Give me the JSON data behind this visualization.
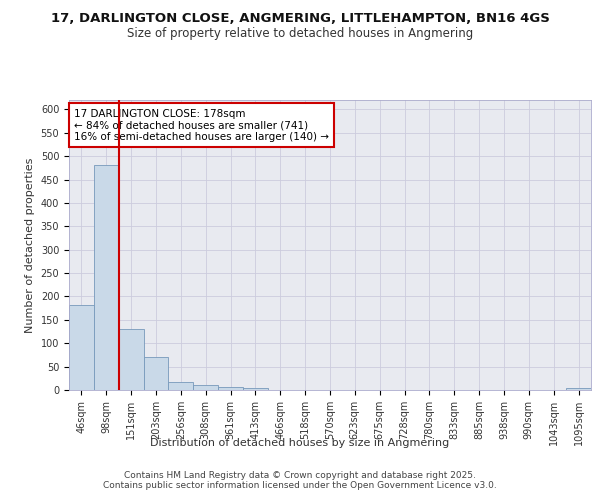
{
  "title_line1": "17, DARLINGTON CLOSE, ANGMERING, LITTLEHAMPTON, BN16 4GS",
  "title_line2": "Size of property relative to detached houses in Angmering",
  "xlabel": "Distribution of detached houses by size in Angmering",
  "ylabel": "Number of detached properties",
  "categories": [
    "46sqm",
    "98sqm",
    "151sqm",
    "203sqm",
    "256sqm",
    "308sqm",
    "361sqm",
    "413sqm",
    "466sqm",
    "518sqm",
    "570sqm",
    "623sqm",
    "675sqm",
    "728sqm",
    "780sqm",
    "833sqm",
    "885sqm",
    "938sqm",
    "990sqm",
    "1043sqm",
    "1095sqm"
  ],
  "values": [
    181,
    480,
    130,
    70,
    18,
    10,
    6,
    5,
    0,
    0,
    0,
    0,
    0,
    0,
    0,
    0,
    0,
    0,
    0,
    0,
    5
  ],
  "bar_color": "#c9d9e8",
  "bar_edge_color": "#7799bb",
  "grid_color": "#ccccdd",
  "background_color": "#e8eaf0",
  "annotation_box_text": "17 DARLINGTON CLOSE: 178sqm\n← 84% of detached houses are smaller (741)\n16% of semi-detached houses are larger (140) →",
  "vline_x_index": 2,
  "vline_color": "#cc0000",
  "ylim": [
    0,
    620
  ],
  "yticks": [
    0,
    50,
    100,
    150,
    200,
    250,
    300,
    350,
    400,
    450,
    500,
    550,
    600
  ],
  "footer_line1": "Contains HM Land Registry data © Crown copyright and database right 2025.",
  "footer_line2": "Contains public sector information licensed under the Open Government Licence v3.0.",
  "title_fontsize": 9.5,
  "subtitle_fontsize": 8.5,
  "axis_label_fontsize": 8,
  "tick_fontsize": 7,
  "annotation_fontsize": 7.5,
  "footer_fontsize": 6.5
}
